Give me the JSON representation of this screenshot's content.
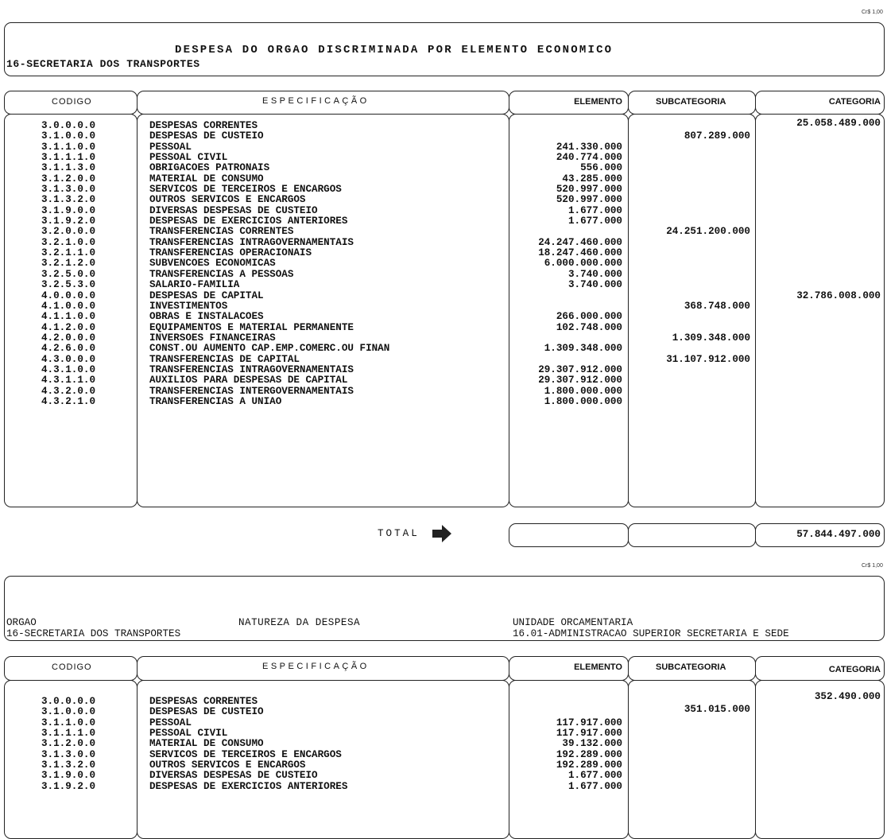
{
  "unit_label": "Cr$ 1,00",
  "section1": {
    "title": "DESPESA DO ORGAO DISCRIMINADA POR ELEMENTO ECONOMICO",
    "orgao": "16-SECRETARIA DOS TRANSPORTES",
    "headers": {
      "codigo": "CODIGO",
      "especificacao": "ESPECIFICAÇÃO",
      "elemento": "ELEMENTO",
      "subcategoria": "SUBCATEGORIA",
      "categoria": "CATEGORIA"
    },
    "rows": [
      [
        "3.0.0.0.0",
        "DESPESAS CORRENTES",
        "",
        "",
        "25.058.489.000"
      ],
      [
        "3.1.0.0.0",
        "DESPESAS DE CUSTEIO",
        "",
        "807.289.000",
        ""
      ],
      [
        "3.1.1.0.0",
        "PESSOAL",
        "241.330.000",
        "",
        ""
      ],
      [
        "3.1.1.1.0",
        "PESSOAL CIVIL",
        "240.774.000",
        "",
        ""
      ],
      [
        "3.1.1.3.0",
        "OBRIGACOES PATRONAIS",
        "556.000",
        "",
        ""
      ],
      [
        "3.1.2.0.0",
        "MATERIAL DE CONSUMO",
        "43.285.000",
        "",
        ""
      ],
      [
        "3.1.3.0.0",
        "SERVICOS DE TERCEIROS E ENCARGOS",
        "520.997.000",
        "",
        ""
      ],
      [
        "3.1.3.2.0",
        "OUTROS SERVICOS E ENCARGOS",
        "520.997.000",
        "",
        ""
      ],
      [
        "3.1.9.0.0",
        "DIVERSAS DESPESAS DE CUSTEIO",
        "1.677.000",
        "",
        ""
      ],
      [
        "3.1.9.2.0",
        "DESPESAS DE EXERCICIOS ANTERIORES",
        "1.677.000",
        "",
        ""
      ],
      [
        "3.2.0.0.0",
        "TRANSFERENCIAS CORRENTES",
        "",
        "24.251.200.000",
        ""
      ],
      [
        "3.2.1.0.0",
        "TRANSFERENCIAS INTRAGOVERNAMENTAIS",
        "24.247.460.000",
        "",
        ""
      ],
      [
        "3.2.1.1.0",
        "TRANSFERENCIAS OPERACIONAIS",
        "18.247.460.000",
        "",
        ""
      ],
      [
        "3.2.1.2.0",
        "SUBVENCOES ECONOMICAS",
        "6.000.000.000",
        "",
        ""
      ],
      [
        "3.2.5.0.0",
        "TRANSFERENCIAS A PESSOAS",
        "3.740.000",
        "",
        ""
      ],
      [
        "3.2.5.3.0",
        "SALARIO-FAMILIA",
        "3.740.000",
        "",
        ""
      ],
      [
        "4.0.0.0.0",
        "DESPESAS DE CAPITAL",
        "",
        "",
        "32.786.008.000"
      ],
      [
        "4.1.0.0.0",
        "INVESTIMENTOS",
        "",
        "368.748.000",
        ""
      ],
      [
        "4.1.1.0.0",
        "OBRAS E INSTALACOES",
        "266.000.000",
        "",
        ""
      ],
      [
        "4.1.2.0.0",
        "EQUIPAMENTOS E MATERIAL PERMANENTE",
        "102.748.000",
        "",
        ""
      ],
      [
        "4.2.0.0.0",
        "INVERSOES FINANCEIRAS",
        "",
        "1.309.348.000",
        ""
      ],
      [
        "4.2.6.0.0",
        "CONST.OU AUMENTO CAP.EMP.COMERC.OU FINAN",
        "1.309.348.000",
        "",
        ""
      ],
      [
        "4.3.0.0.0",
        "TRANSFERENCIAS DE CAPITAL",
        "",
        "31.107.912.000",
        ""
      ],
      [
        "4.3.1.0.0",
        "TRANSFERENCIAS INTRAGOVERNAMENTAIS",
        "29.307.912.000",
        "",
        ""
      ],
      [
        "4.3.1.1.0",
        "AUXILIOS PARA DESPESAS DE CAPITAL",
        "29.307.912.000",
        "",
        ""
      ],
      [
        "4.3.2.0.0",
        "TRANSFERENCIAS INTERGOVERNAMENTAIS",
        "1.800.000.000",
        "",
        ""
      ],
      [
        "4.3.2.1.0",
        "TRANSFERENCIAS A UNIAO",
        "1.800.000.000",
        "",
        ""
      ]
    ],
    "total_label": "TOTAL",
    "total_icon": "arrow-right-icon",
    "total_elemento": "",
    "total_subcategoria": "",
    "total_categoria": "57.844.497.000"
  },
  "section2": {
    "orgao_label": "ORGAO",
    "orgao": "16-SECRETARIA DOS TRANSPORTES",
    "natureza_label": "NATUREZA DA DESPESA",
    "unidade_label": "UNIDADE ORCAMENTARIA",
    "unidade": "16.01-ADMINISTRACAO SUPERIOR SECRETARIA E SEDE",
    "headers": {
      "codigo": "CODIGO",
      "especificacao": "ESPECIFICAÇÃO",
      "elemento": "ELEMENTO",
      "subcategoria": "SUBCATEGORIA",
      "categoria": "CATEGORIA"
    },
    "rows": [
      [
        "3.0.0.0.0",
        "DESPESAS CORRENTES",
        "",
        "",
        "352.490.000"
      ],
      [
        "3.1.0.0.0",
        "DESPESAS DE CUSTEIO",
        "",
        "351.015.000",
        ""
      ],
      [
        "3.1.1.0.0",
        "PESSOAL",
        "117.917.000",
        "",
        ""
      ],
      [
        "3.1.1.1.0",
        "PESSOAL CIVIL",
        "117.917.000",
        "",
        ""
      ],
      [
        "3.1.2.0.0",
        "MATERIAL DE CONSUMO",
        "39.132.000",
        "",
        ""
      ],
      [
        "3.1.3.0.0",
        "SERVICOS DE TERCEIROS E ENCARGOS",
        "192.289.000",
        "",
        ""
      ],
      [
        "3.1.3.2.0",
        "OUTROS SERVICOS E ENCARGOS",
        "192.289.000",
        "",
        ""
      ],
      [
        "3.1.9.0.0",
        "DIVERSAS DESPESAS DE CUSTEIO",
        "1.677.000",
        "",
        ""
      ],
      [
        "3.1.9.2.0",
        "DESPESAS DE EXERCICIOS ANTERIORES",
        "1.677.000",
        "",
        ""
      ]
    ]
  }
}
